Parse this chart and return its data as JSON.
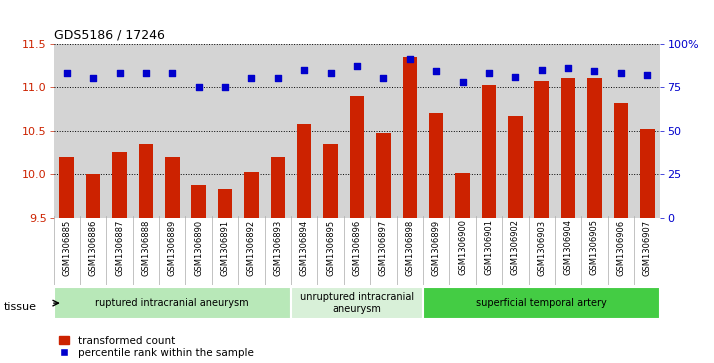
{
  "title": "GDS5186 / 17246",
  "samples": [
    "GSM1306885",
    "GSM1306886",
    "GSM1306887",
    "GSM1306888",
    "GSM1306889",
    "GSM1306890",
    "GSM1306891",
    "GSM1306892",
    "GSM1306893",
    "GSM1306894",
    "GSM1306895",
    "GSM1306896",
    "GSM1306897",
    "GSM1306898",
    "GSM1306899",
    "GSM1306900",
    "GSM1306901",
    "GSM1306902",
    "GSM1306903",
    "GSM1306904",
    "GSM1306905",
    "GSM1306906",
    "GSM1306907"
  ],
  "bar_values": [
    10.2,
    10.0,
    10.25,
    10.35,
    10.2,
    9.88,
    9.83,
    10.02,
    10.2,
    10.58,
    10.35,
    10.9,
    10.47,
    11.35,
    10.7,
    10.01,
    11.02,
    10.67,
    11.07,
    11.1,
    11.1,
    10.82,
    10.52
  ],
  "dot_values_pct": [
    83,
    80,
    83,
    83,
    83,
    75,
    75,
    80,
    80,
    85,
    83,
    87,
    80,
    91,
    84,
    78,
    83,
    81,
    85,
    86,
    84,
    83,
    82
  ],
  "ylim_left": [
    9.5,
    11.5
  ],
  "ylim_right": [
    0,
    100
  ],
  "yticks_left": [
    9.5,
    10.0,
    10.5,
    11.0,
    11.5
  ],
  "yticks_right": [
    0,
    25,
    50,
    75,
    100
  ],
  "ytick_labels_right": [
    "0",
    "25",
    "50",
    "75",
    "100%"
  ],
  "bar_color": "#cc2200",
  "dot_color": "#0000cc",
  "plot_bg_color": "#d4d4d4",
  "fig_bg_color": "#ffffff",
  "tissue_groups": [
    {
      "label": "ruptured intracranial aneurysm",
      "start": 0,
      "end": 8,
      "color": "#b8e8b8"
    },
    {
      "label": "unruptured intracranial\naneurysm",
      "start": 9,
      "end": 13,
      "color": "#d8f0d8"
    },
    {
      "label": "superficial temporal artery",
      "start": 14,
      "end": 22,
      "color": "#44cc44"
    }
  ],
  "legend_bar_label": "transformed count",
  "legend_dot_label": "percentile rank within the sample",
  "tissue_label": "tissue"
}
